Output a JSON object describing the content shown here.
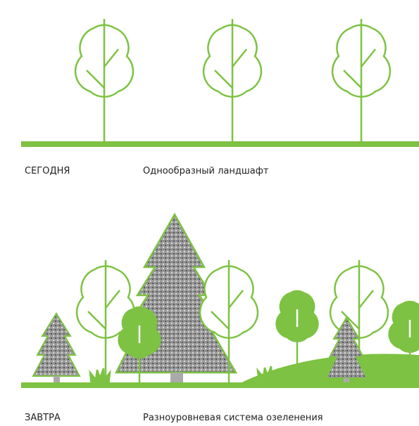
{
  "today": {
    "label": "СЕГОДНЯ",
    "caption": "Однообразный ландшафт"
  },
  "tomorrow": {
    "label": "ЗАВТРА",
    "caption": "Разноуровневая система озеленения"
  }
}
